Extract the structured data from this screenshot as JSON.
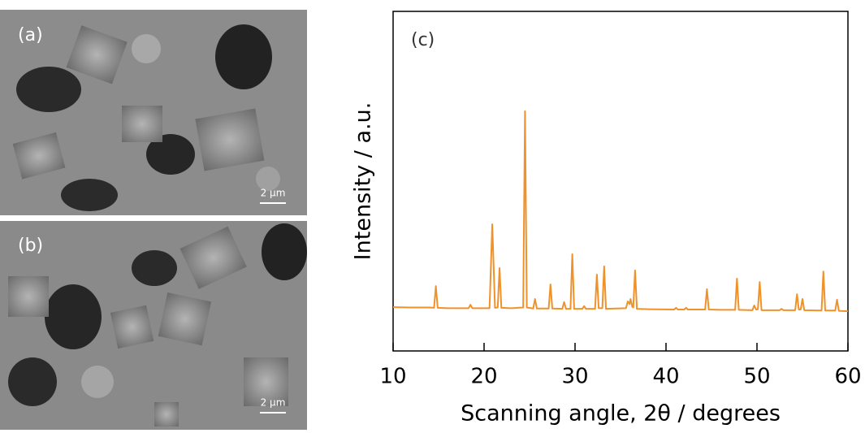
{
  "images": [
    {
      "label": "(a)",
      "scale_bar": "2 µm"
    },
    {
      "label": "(b)",
      "scale_bar": "2 µm"
    }
  ],
  "chart_data": {
    "type": "line",
    "annotation": "(c)",
    "x_label": "Scanning angle, 2θ / degrees",
    "y_label": "Intensity / a.u.",
    "color": "#f0922b",
    "x": [
      10,
      12,
      14,
      14.5,
      14.7,
      14.9,
      16,
      18.3,
      18.5,
      18.7,
      20.6,
      20.9,
      21.2,
      21.5,
      21.7,
      21.9,
      23,
      24.3,
      24.5,
      24.7,
      25.4,
      25.6,
      25.8,
      27.1,
      27.3,
      27.5,
      28.6,
      28.8,
      29.0,
      29.5,
      29.7,
      29.9,
      30.8,
      31.0,
      31.2,
      32.2,
      32.4,
      32.6,
      33.0,
      33.2,
      33.4,
      35.6,
      35.8,
      36.0,
      36.1,
      36.3,
      36.4,
      36.6,
      36.8,
      38,
      40.9,
      41.1,
      41.3,
      42.0,
      42.2,
      42.4,
      44.3,
      44.5,
      44.7,
      46,
      47.6,
      47.8,
      48.0,
      49.5,
      49.7,
      49.9,
      50.1,
      50.3,
      50.5,
      52.5,
      52.7,
      52.9,
      54.2,
      54.4,
      54.6,
      54.8,
      55.0,
      55.2,
      57.1,
      57.3,
      57.5,
      58.6,
      58.8,
      59.0,
      60
    ],
    "values": [
      12.9,
      12.8,
      12.8,
      12.7,
      19.1,
      12.7,
      12.6,
      12.6,
      13.6,
      12.6,
      12.6,
      37.3,
      12.7,
      12.8,
      24.4,
      12.7,
      12.6,
      12.8,
      70.6,
      12.8,
      12.5,
      15.3,
      12.5,
      12.5,
      19.6,
      12.5,
      12.4,
      14.4,
      12.4,
      12.4,
      28.5,
      12.4,
      12.4,
      13.2,
      12.4,
      12.4,
      22.5,
      12.6,
      12.6,
      24.9,
      12.4,
      12.6,
      14.6,
      13.8,
      15.3,
      13.0,
      12.8,
      23.7,
      12.4,
      12.3,
      12.2,
      12.7,
      12.2,
      12.2,
      12.7,
      12.2,
      12.2,
      18.2,
      12.2,
      12.1,
      12.1,
      21.3,
      12.1,
      12.0,
      13.4,
      12.2,
      12.3,
      20.3,
      12.0,
      12.0,
      12.4,
      12.0,
      12.0,
      16.7,
      12.2,
      12.2,
      15.3,
      12.0,
      11.9,
      23.4,
      11.9,
      11.9,
      15.1,
      11.8,
      11.7
    ],
    "xlim": [
      10,
      60
    ],
    "xticks": [
      10,
      20,
      30,
      40,
      50,
      60
    ],
    "ylim": [
      0,
      100
    ]
  }
}
